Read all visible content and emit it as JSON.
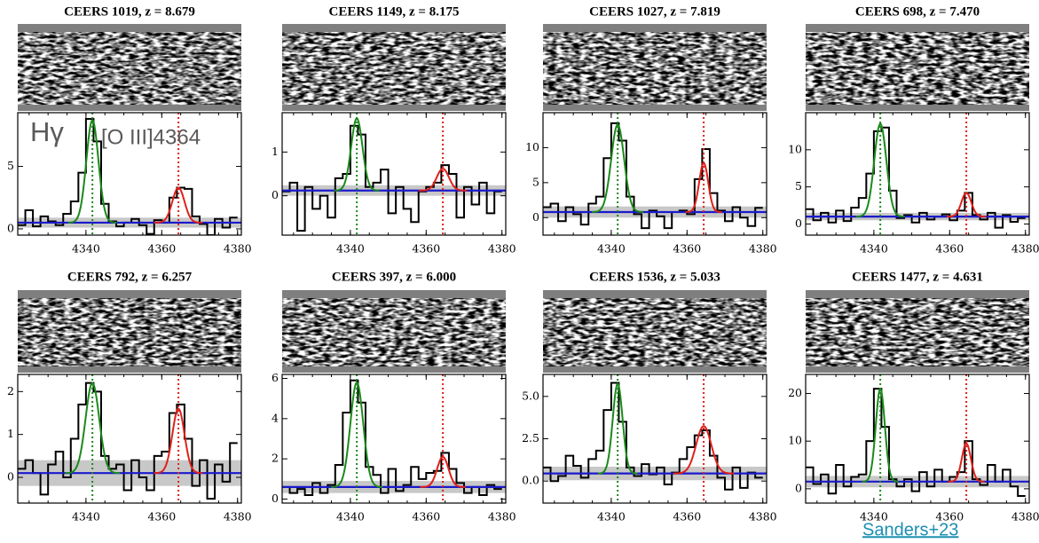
{
  "chart_data": [
    {
      "type": "spectrum",
      "title": "CEERS 1019, z = 8.679",
      "xlim": [
        4322,
        4381
      ],
      "xticks": [
        4340,
        4360,
        4380
      ],
      "ylim": [
        -0.5,
        9.3
      ],
      "yticks": [
        0,
        5
      ],
      "x": [
        4323,
        4325,
        4327,
        4329,
        4331,
        4333,
        4335,
        4337,
        4339,
        4341,
        4343,
        4345,
        4347,
        4349,
        4351,
        4353,
        4355,
        4357,
        4359,
        4361,
        4363,
        4365,
        4367,
        4369,
        4371,
        4373,
        4375,
        4377,
        4379
      ],
      "data": {
        "color": "#000000",
        "values": [
          0.3,
          1.5,
          0.2,
          1.0,
          0.6,
          0.3,
          1.2,
          2.2,
          4.5,
          8.8,
          7.0,
          2.0,
          0.6,
          0.2,
          0.5,
          0.8,
          0.3,
          -0.4,
          0.7,
          0.5,
          2.5,
          3.3,
          3.2,
          1.0,
          0.4,
          -0.5,
          0.8,
          0.1,
          0.9
        ]
      },
      "lines": [
        {
          "color": "#1a8a1a",
          "center": 4341.7,
          "amplitude": 8.2,
          "sigma": 1.6
        },
        {
          "color": "#e0201a",
          "center": 4364.4,
          "amplitude": 2.8,
          "sigma": 1.6
        }
      ],
      "continuum": {
        "color": "#1a1acc",
        "value": 0.5
      },
      "error": 0.4
    },
    {
      "type": "spectrum",
      "title": "CEERS 1149, z = 8.175",
      "xlim": [
        4322,
        4381
      ],
      "xticks": [
        4340,
        4360,
        4380
      ],
      "ylim": [
        -0.9,
        1.9
      ],
      "yticks": [
        0,
        1
      ],
      "x": [
        4323,
        4325,
        4327,
        4329,
        4331,
        4333,
        4335,
        4337,
        4339,
        4341,
        4343,
        4345,
        4347,
        4349,
        4351,
        4353,
        4355,
        4357,
        4359,
        4361,
        4363,
        4365,
        4367,
        4369,
        4371,
        4373,
        4375,
        4377,
        4379
      ],
      "data": {
        "color": "#000000",
        "values": [
          0.1,
          0.3,
          -0.8,
          0.2,
          -0.3,
          0.0,
          -0.5,
          0.4,
          0.5,
          1.6,
          1.4,
          0.2,
          0.3,
          0.6,
          -0.4,
          0.2,
          -0.3,
          -0.6,
          0.1,
          0.2,
          0.3,
          0.7,
          0.5,
          -0.5,
          0.2,
          -0.2,
          0.3,
          -0.4,
          0.1
        ]
      },
      "lines": [
        {
          "color": "#1a8a1a",
          "center": 4341.7,
          "amplitude": 1.65,
          "sigma": 1.5
        },
        {
          "color": "#e0201a",
          "center": 4364.4,
          "amplitude": 0.5,
          "sigma": 1.6
        }
      ],
      "continuum": {
        "color": "#1a1acc",
        "value": 0.12
      },
      "error": 0.12
    },
    {
      "type": "spectrum",
      "title": "CEERS 1027, z = 7.819",
      "xlim": [
        4322,
        4381
      ],
      "xticks": [
        4340,
        4360,
        4380
      ],
      "ylim": [
        -2.5,
        15
      ],
      "yticks": [
        0,
        5,
        10
      ],
      "x": [
        4323,
        4325,
        4327,
        4329,
        4331,
        4333,
        4335,
        4337,
        4339,
        4341,
        4343,
        4345,
        4347,
        4349,
        4351,
        4353,
        4355,
        4357,
        4359,
        4361,
        4363,
        4365,
        4367,
        4369,
        4371,
        4373,
        4375,
        4377,
        4379
      ],
      "data": {
        "color": "#000000",
        "values": [
          1.5,
          2.0,
          -0.5,
          1.5,
          0.5,
          -1.0,
          2.0,
          3.0,
          8.5,
          13.5,
          11.0,
          3.0,
          0.5,
          -1.5,
          1.0,
          0.2,
          -1.5,
          0.8,
          1.0,
          0.5,
          5.5,
          9.8,
          3.5,
          1.0,
          -0.5,
          1.5,
          0.0,
          -1.2,
          1.4
        ]
      },
      "lines": [
        {
          "color": "#1a8a1a",
          "center": 4341.7,
          "amplitude": 12.5,
          "sigma": 1.7
        },
        {
          "color": "#e0201a",
          "center": 4364.4,
          "amplitude": 7.0,
          "sigma": 1.2
        }
      ],
      "continuum": {
        "color": "#1a1acc",
        "value": 0.8
      },
      "error": 0.8
    },
    {
      "type": "spectrum",
      "title": "CEERS 698, z = 7.470",
      "xlim": [
        4322,
        4381
      ],
      "xticks": [
        4340,
        4360,
        4380
      ],
      "ylim": [
        -1.5,
        15
      ],
      "yticks": [
        0,
        5,
        10
      ],
      "x": [
        4323,
        4325,
        4327,
        4329,
        4331,
        4333,
        4335,
        4337,
        4339,
        4341,
        4343,
        4345,
        4347,
        4349,
        4351,
        4353,
        4355,
        4357,
        4359,
        4361,
        4363,
        4365,
        4367,
        4369,
        4371,
        4373,
        4375,
        4377,
        4379
      ],
      "data": {
        "color": "#000000",
        "values": [
          2.0,
          0.5,
          1.5,
          0.2,
          1.8,
          0.4,
          2.2,
          3.5,
          6.8,
          12.5,
          13.0,
          4.5,
          0.8,
          1.2,
          0.2,
          1.5,
          0.6,
          1.0,
          1.3,
          0.5,
          1.8,
          4.2,
          1.2,
          0.6,
          1.5,
          -0.5,
          1.2,
          0.3,
          0.8
        ]
      },
      "lines": [
        {
          "color": "#1a8a1a",
          "center": 4341.7,
          "amplitude": 12.5,
          "sigma": 1.6
        },
        {
          "color": "#e0201a",
          "center": 4364.4,
          "amplitude": 3.2,
          "sigma": 1.3
        }
      ],
      "continuum": {
        "color": "#1a1acc",
        "value": 1.0
      },
      "error": 0.5
    },
    {
      "type": "spectrum",
      "title": "CEERS 792, z = 6.257",
      "xlim": [
        4322,
        4381
      ],
      "xticks": [
        4340,
        4360,
        4380
      ],
      "ylim": [
        -0.6,
        2.4
      ],
      "yticks": [
        0,
        1,
        2
      ],
      "x": [
        4323,
        4325,
        4327,
        4329,
        4331,
        4333,
        4335,
        4337,
        4339,
        4341,
        4343,
        4345,
        4347,
        4349,
        4351,
        4353,
        4355,
        4357,
        4359,
        4361,
        4363,
        4365,
        4367,
        4369,
        4371,
        4373,
        4375,
        4377,
        4379
      ],
      "data": {
        "color": "#000000",
        "values": [
          0.2,
          0.4,
          0.1,
          -0.4,
          0.3,
          0.6,
          0.0,
          0.9,
          1.7,
          2.2,
          2.0,
          0.5,
          0.2,
          0.3,
          -0.3,
          0.4,
          0.0,
          -0.3,
          0.5,
          0.6,
          1.5,
          1.7,
          0.9,
          -0.2,
          0.4,
          -0.5,
          0.3,
          -0.1,
          0.8
        ]
      },
      "lines": [
        {
          "color": "#1a8a1a",
          "center": 4341.7,
          "amplitude": 2.1,
          "sigma": 1.8
        },
        {
          "color": "#e0201a",
          "center": 4364.4,
          "amplitude": 1.5,
          "sigma": 1.6
        }
      ],
      "continuum": {
        "color": "#1a1acc",
        "value": 0.1
      },
      "error": 0.3
    },
    {
      "type": "spectrum",
      "title": "CEERS 397, z = 6.000",
      "xlim": [
        4322,
        4381
      ],
      "xticks": [
        4340,
        4360,
        4380
      ],
      "ylim": [
        -0.2,
        6.2
      ],
      "yticks": [
        0,
        2,
        4,
        6
      ],
      "x": [
        4323,
        4325,
        4327,
        4329,
        4331,
        4333,
        4335,
        4337,
        4339,
        4341,
        4343,
        4345,
        4347,
        4349,
        4351,
        4353,
        4355,
        4357,
        4359,
        4361,
        4363,
        4365,
        4367,
        4369,
        4371,
        4373,
        4375,
        4377,
        4379
      ],
      "data": {
        "color": "#000000",
        "values": [
          0.6,
          0.3,
          0.5,
          0.2,
          0.8,
          0.3,
          0.7,
          1.7,
          4.3,
          5.9,
          4.8,
          1.6,
          1.2,
          0.3,
          1.5,
          0.4,
          0.7,
          1.6,
          1.0,
          1.3,
          1.4,
          2.3,
          1.5,
          0.8,
          0.3,
          0.6,
          0.2,
          0.7,
          0.5
        ]
      },
      "lines": [
        {
          "color": "#1a8a1a",
          "center": 4341.7,
          "amplitude": 5.2,
          "sigma": 1.7
        },
        {
          "color": "#e0201a",
          "center": 4364.4,
          "amplitude": 1.5,
          "sigma": 1.5
        }
      ],
      "continuum": {
        "color": "#1a1acc",
        "value": 0.6
      },
      "error": 0.3
    },
    {
      "type": "spectrum",
      "title": "CEERS 1536, z = 5.033",
      "xlim": [
        4322,
        4381
      ],
      "xticks": [
        4340,
        4360,
        4380
      ],
      "ylim": [
        -1.3,
        6.3
      ],
      "yticks": [
        {
          "value": 0,
          "label": "0.0"
        },
        2.5,
        {
          "value": 5,
          "label": "5.0"
        }
      ],
      "x": [
        4323,
        4325,
        4327,
        4329,
        4331,
        4333,
        4335,
        4337,
        4339,
        4341,
        4343,
        4345,
        4347,
        4349,
        4351,
        4353,
        4355,
        4357,
        4359,
        4361,
        4363,
        4365,
        4367,
        4369,
        4371,
        4373,
        4375,
        4377,
        4379
      ],
      "data": {
        "color": "#000000",
        "values": [
          0.8,
          0.0,
          0.3,
          1.5,
          0.9,
          0.2,
          1.3,
          1.8,
          4.2,
          5.8,
          3.5,
          0.8,
          0.3,
          1.0,
          0.4,
          0.8,
          -0.2,
          0.5,
          1.3,
          2.0,
          2.7,
          3.0,
          1.5,
          0.2,
          -0.5,
          0.8,
          -0.4,
          0.5,
          0.2
        ]
      },
      "lines": [
        {
          "color": "#1a8a1a",
          "center": 4341.7,
          "amplitude": 5.3,
          "sigma": 1.3
        },
        {
          "color": "#e0201a",
          "center": 4364.4,
          "amplitude": 2.8,
          "sigma": 2.0
        }
      ],
      "continuum": {
        "color": "#1a1acc",
        "value": 0.45
      },
      "error": 0.4
    },
    {
      "type": "spectrum",
      "title": "CEERS 1477, z = 4.631",
      "xlim": [
        4322,
        4381
      ],
      "xticks": [
        4340,
        4360,
        4380
      ],
      "ylim": [
        -3,
        24
      ],
      "yticks": [
        0,
        10,
        20
      ],
      "x": [
        4323,
        4325,
        4327,
        4329,
        4331,
        4333,
        4335,
        4337,
        4339,
        4341,
        4343,
        4345,
        4347,
        4349,
        4351,
        4353,
        4355,
        4357,
        4359,
        4361,
        4363,
        4365,
        4367,
        4369,
        4371,
        4373,
        4375,
        4377,
        4379
      ],
      "data": {
        "color": "#000000",
        "values": [
          4.5,
          1.0,
          3.0,
          -1.0,
          5.0,
          0.5,
          2.5,
          3.0,
          10.0,
          21.0,
          13.0,
          2.0,
          0.5,
          2.0,
          -0.5,
          3.5,
          0.5,
          4.0,
          1.5,
          2.5,
          3.5,
          10.0,
          2.0,
          0.8,
          5.0,
          1.5,
          4.0,
          0.5,
          -1.5
        ]
      },
      "lines": [
        {
          "color": "#1a8a1a",
          "center": 4341.7,
          "amplitude": 19.5,
          "sigma": 1.2
        },
        {
          "color": "#e0201a",
          "center": 4364.4,
          "amplitude": 8.0,
          "sigma": 1.2
        }
      ],
      "continuum": {
        "color": "#1a1acc",
        "value": 1.5
      },
      "error": 1.2
    }
  ],
  "annotations": [
    "Hγ",
    "[O III]4364"
  ],
  "source": "Sanders+23"
}
